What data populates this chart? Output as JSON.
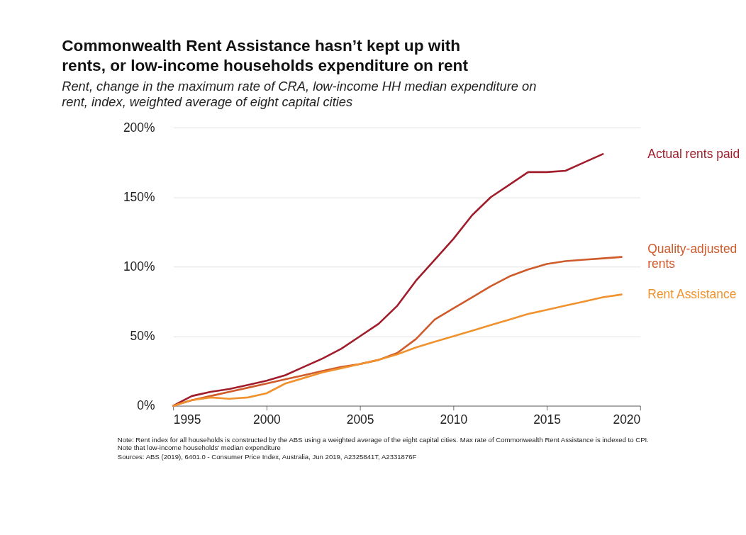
{
  "chart_data": {
    "type": "line",
    "title": "Commonwealth Rent Assistance hasn’t kept up with rents, or low-income households expenditure on rent",
    "subtitle": "Rent, change in the maximum rate of CRA, low-income HH median expenditure on rent, index, weighted average of eight capital cities",
    "x": [
      1995,
      1996,
      1997,
      1998,
      1999,
      2000,
      2001,
      2002,
      2003,
      2004,
      2005,
      2006,
      2007,
      2008,
      2009,
      2010,
      2011,
      2012,
      2013,
      2014,
      2015,
      2016,
      2017,
      2018,
      2019
    ],
    "series": [
      {
        "name": "Actual rents paid",
        "color": "#a11d2b",
        "values": [
          0,
          7,
          10,
          12,
          15,
          18,
          22,
          28,
          34,
          41,
          50,
          59,
          72,
          90,
          105,
          120,
          137,
          150,
          159,
          168,
          168,
          169,
          175,
          181,
          null
        ]
      },
      {
        "name": "Quality-adjusted rents",
        "color": "#cf5a2a",
        "values": [
          0,
          4,
          7,
          10,
          13,
          16,
          19,
          22,
          25,
          28,
          30,
          33,
          38,
          48,
          62,
          70,
          78,
          86,
          93,
          98,
          102,
          104,
          105,
          106,
          107
        ]
      },
      {
        "name": "Rent Assistance",
        "color": "#f0922e",
        "values": [
          0,
          4,
          6,
          5,
          6,
          9,
          16,
          20,
          24,
          27,
          30,
          33,
          37,
          42,
          46,
          50,
          54,
          58,
          62,
          66,
          69,
          72,
          75,
          78,
          80
        ]
      }
    ],
    "xlim": [
      1995,
      2020
    ],
    "xticks": [
      1995,
      2000,
      2005,
      2010,
      2015,
      2020
    ],
    "ylim": [
      0,
      200
    ],
    "yticks": [
      {
        "value": 0,
        "label": "0%"
      },
      {
        "value": 50,
        "label": "50%"
      },
      {
        "value": 100,
        "label": "100%"
      },
      {
        "value": 150,
        "label": "150%"
      },
      {
        "value": 200,
        "label": "200%"
      }
    ],
    "grid": "y",
    "annotations": [
      "Note: Rent index for all households is constructed by the ABS using a weighted average of the eight capital cities. Max rate of Commonwealth Rent Assistance is indexed to CPI.  Note that low-income households’ median expenditure",
      "Sources: ABS (2019), 6401.0 - Consumer Price Index, Australia, Jun 2019, A2325841T, A2331876F"
    ]
  }
}
